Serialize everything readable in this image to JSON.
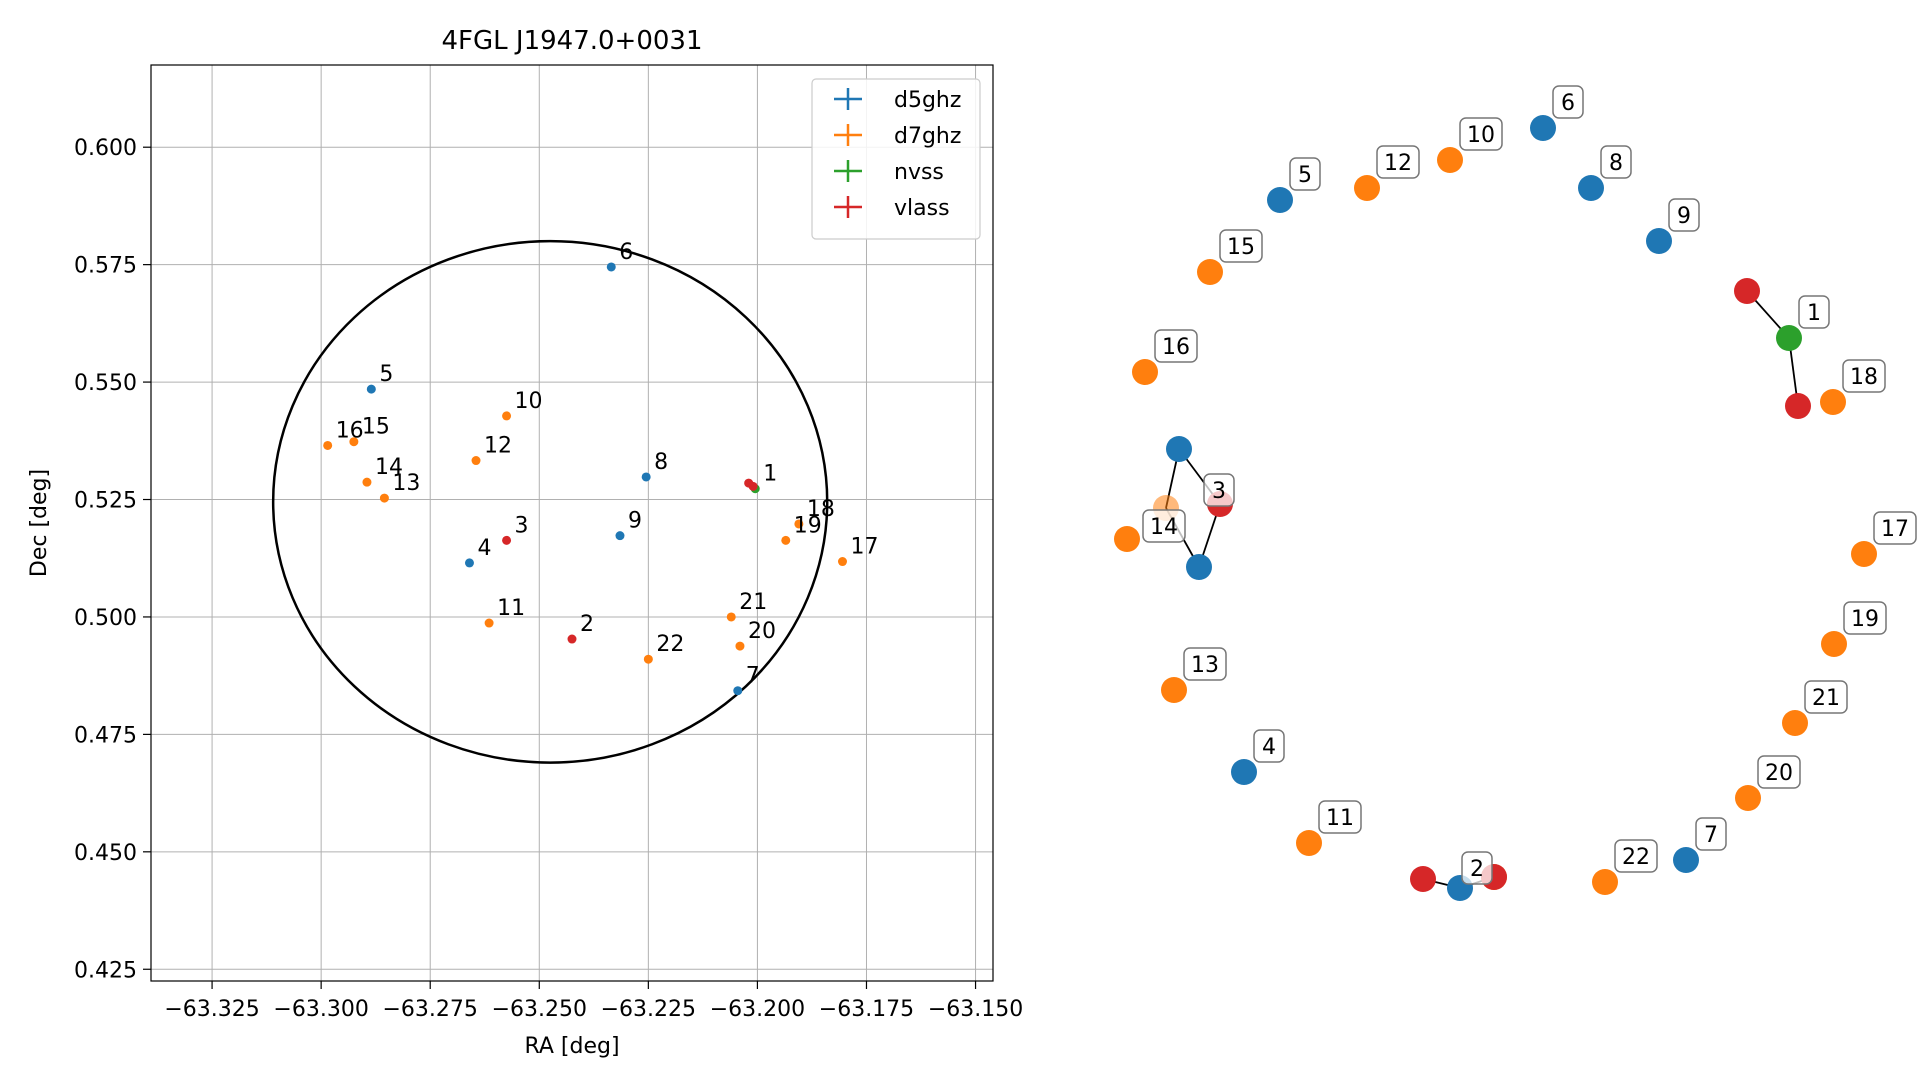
{
  "chart_data": [
    {
      "type": "scatter",
      "title": "4FGL J1947.0+0031",
      "xlabel": "RA [deg]",
      "ylabel": "Dec [deg]",
      "xlim": [
        -63.339,
        -63.146
      ],
      "ylim": [
        0.4225,
        0.6175
      ],
      "x_ticks": [
        -63.325,
        -63.3,
        -63.275,
        -63.25,
        -63.225,
        -63.2,
        -63.175,
        -63.15
      ],
      "x_tick_labels": [
        "−63.325",
        "−63.300",
        "−63.275",
        "−63.250",
        "−63.225",
        "−63.200",
        "−63.175",
        "−63.150"
      ],
      "y_ticks": [
        0.425,
        0.45,
        0.475,
        0.5,
        0.525,
        0.55,
        0.575,
        0.6
      ],
      "y_tick_labels": [
        "0.425",
        "0.450",
        "0.475",
        "0.500",
        "0.525",
        "0.550",
        "0.575",
        "0.600"
      ],
      "grid": true,
      "legend": "top-right",
      "series": [
        {
          "name": "d5ghz",
          "color": "#1f77b4",
          "points": [
            {
              "label": "4",
              "x": -63.266,
              "y": 0.5115
            },
            {
              "label": "5",
              "x": -63.2885,
              "y": 0.5485
            },
            {
              "label": "6",
              "x": -63.2335,
              "y": 0.5745
            },
            {
              "label": "7",
              "x": -63.2045,
              "y": 0.4843
            },
            {
              "label": "8",
              "x": -63.2255,
              "y": 0.5298
            },
            {
              "label": "9",
              "x": -63.2315,
              "y": 0.5173
            }
          ]
        },
        {
          "name": "d7ghz",
          "color": "#ff7f0e",
          "points": [
            {
              "label": "10",
              "x": -63.2575,
              "y": 0.5428
            },
            {
              "label": "11",
              "x": -63.2615,
              "y": 0.4987
            },
            {
              "label": "12",
              "x": -63.2645,
              "y": 0.5333
            },
            {
              "label": "13",
              "x": -63.2855,
              "y": 0.5253
            },
            {
              "label": "14",
              "x": -63.2895,
              "y": 0.5287
            },
            {
              "label": "15",
              "x": -63.2925,
              "y": 0.5373
            },
            {
              "label": "16",
              "x": -63.2985,
              "y": 0.5365
            },
            {
              "label": "17",
              "x": -63.1805,
              "y": 0.5118
            },
            {
              "label": "18",
              "x": -63.1905,
              "y": 0.5198
            },
            {
              "label": "19",
              "x": -63.1935,
              "y": 0.5163
            },
            {
              "label": "20",
              "x": -63.204,
              "y": 0.4938
            },
            {
              "label": "21",
              "x": -63.206,
              "y": 0.5
            },
            {
              "label": "22",
              "x": -63.225,
              "y": 0.491
            }
          ]
        },
        {
          "name": "nvss",
          "color": "#2ca02c",
          "points": [
            {
              "label": "1",
              "x": -63.2005,
              "y": 0.5273
            }
          ]
        },
        {
          "name": "vlass",
          "color": "#d62728",
          "points": [
            {
              "label": "",
              "x": -63.202,
              "y": 0.5285
            },
            {
              "label": "",
              "x": -63.201,
              "y": 0.5278
            },
            {
              "label": "3",
              "x": -63.2575,
              "y": 0.5163
            },
            {
              "label": "2",
              "x": -63.2425,
              "y": 0.4953
            }
          ]
        }
      ],
      "circle": {
        "center": [
          -63.2475,
          0.5245
        ],
        "radius_x": 0.0635,
        "radius_y": 0.0555,
        "color": "#000000"
      }
    },
    {
      "type": "network",
      "nodes": [
        {
          "id": "6",
          "color": "#1f77b4",
          "label": "6"
        },
        {
          "id": "8",
          "color": "#1f77b4",
          "label": "8"
        },
        {
          "id": "9",
          "color": "#1f77b4",
          "label": "9"
        },
        {
          "id": "5",
          "color": "#1f77b4",
          "label": "5"
        },
        {
          "id": "7",
          "color": "#1f77b4",
          "label": "7"
        },
        {
          "id": "4",
          "color": "#1f77b4",
          "label": "4"
        },
        {
          "id": "3a",
          "color": "#1f77b4",
          "label": ""
        },
        {
          "id": "3b",
          "color": "#1f77b4",
          "label": ""
        },
        {
          "id": "2a",
          "color": "#1f77b4",
          "label": ""
        },
        {
          "id": "10",
          "color": "#ff7f0e",
          "label": "10"
        },
        {
          "id": "12",
          "color": "#ff7f0e",
          "label": "12"
        },
        {
          "id": "15",
          "color": "#ff7f0e",
          "label": "15"
        },
        {
          "id": "16",
          "color": "#ff7f0e",
          "label": "16"
        },
        {
          "id": "18",
          "color": "#ff7f0e",
          "label": "18"
        },
        {
          "id": "17",
          "color": "#ff7f0e",
          "label": "17"
        },
        {
          "id": "19",
          "color": "#ff7f0e",
          "label": "19"
        },
        {
          "id": "21",
          "color": "#ff7f0e",
          "label": "21"
        },
        {
          "id": "20",
          "color": "#ff7f0e",
          "label": "20"
        },
        {
          "id": "22",
          "color": "#ff7f0e",
          "label": "22"
        },
        {
          "id": "13",
          "color": "#ff7f0e",
          "label": "13"
        },
        {
          "id": "11",
          "color": "#ff7f0e",
          "label": "11"
        },
        {
          "id": "14",
          "color": "#ff7f0e",
          "label": "14"
        },
        {
          "id": "3c",
          "color": "#ff7f0e",
          "label": ""
        },
        {
          "id": "2b",
          "color": "#ff7f0e",
          "label": ""
        },
        {
          "id": "1",
          "color": "#2ca02c",
          "label": "1"
        },
        {
          "id": "1a",
          "color": "#d62728",
          "label": ""
        },
        {
          "id": "1b",
          "color": "#d62728",
          "label": ""
        },
        {
          "id": "3",
          "color": "#d62728",
          "label": "3"
        },
        {
          "id": "2",
          "color": "#d62728",
          "label": "2"
        },
        {
          "id": "2c",
          "color": "#d62728",
          "label": ""
        }
      ],
      "edges": [
        [
          "1",
          "1a"
        ],
        [
          "1",
          "1b"
        ],
        [
          "3a",
          "3"
        ],
        [
          "3",
          "3b"
        ],
        [
          "3a",
          "3c"
        ],
        [
          "3c",
          "3b"
        ],
        [
          "2c",
          "2a"
        ],
        [
          "2a",
          "2b"
        ]
      ]
    }
  ]
}
